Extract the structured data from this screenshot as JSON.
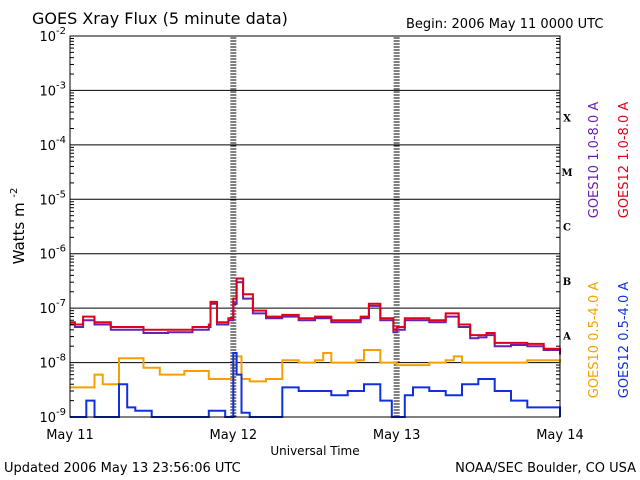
{
  "chart_data": {
    "type": "line",
    "title": "GOES Xray Flux (5 minute data)",
    "begin_label": "Begin:  2006 May 11 0000 UTC",
    "xlabel": "Universal Time",
    "ylabel": "Watts m",
    "ylabel_exponent": "-2",
    "y_scale": "log",
    "ylim": [
      1e-09,
      0.01
    ],
    "y_ticks": [
      {
        "base": "10",
        "exp": "-9",
        "value": 1e-09
      },
      {
        "base": "10",
        "exp": "-8",
        "value": 1e-08
      },
      {
        "base": "10",
        "exp": "-7",
        "value": 1e-07
      },
      {
        "base": "10",
        "exp": "-6",
        "value": 1e-06
      },
      {
        "base": "10",
        "exp": "-5",
        "value": 1e-05
      },
      {
        "base": "10",
        "exp": "-4",
        "value": 0.0001
      },
      {
        "base": "10",
        "exp": "-3",
        "value": 0.001
      },
      {
        "base": "10",
        "exp": "-2",
        "value": 0.01
      }
    ],
    "xlim": [
      0,
      3
    ],
    "x_ticks": [
      {
        "label": "May 11",
        "day": 0
      },
      {
        "label": "May 12",
        "day": 1
      },
      {
        "label": "May 13",
        "day": 2
      },
      {
        "label": "May 14",
        "day": 3
      }
    ],
    "flare_classes": [
      {
        "label": "X",
        "value": 0.000316
      },
      {
        "label": "M",
        "value": 3.16e-05
      },
      {
        "label": "C",
        "value": 3.16e-06
      },
      {
        "label": "B",
        "value": 3.16e-07
      },
      {
        "label": "A",
        "value": 3.16e-08
      }
    ],
    "grid": true,
    "series": [
      {
        "name": "GOES10 1.0-8.0 A",
        "color": "#6a1fb0",
        "x": [
          0,
          0.03,
          0.08,
          0.15,
          0.25,
          0.35,
          0.45,
          0.6,
          0.75,
          0.85,
          0.86,
          0.9,
          0.97,
          1.0,
          1.02,
          1.06,
          1.12,
          1.2,
          1.3,
          1.4,
          1.5,
          1.6,
          1.7,
          1.78,
          1.83,
          1.9,
          1.98,
          2.0,
          2.05,
          2.2,
          2.3,
          2.38,
          2.45,
          2.5,
          2.55,
          2.6,
          2.7,
          2.8,
          2.9,
          3.0
        ],
        "y": [
          5e-08,
          4.5e-08,
          6e-08,
          5e-08,
          4e-08,
          4e-08,
          3.5e-08,
          3.6e-08,
          4e-08,
          4.5e-08,
          1.2e-07,
          5e-08,
          6e-08,
          1.2e-07,
          3e-07,
          1.5e-07,
          8e-08,
          6.5e-08,
          7e-08,
          6e-08,
          6.5e-08,
          5.5e-08,
          5.5e-08,
          6.5e-08,
          1.1e-07,
          6e-08,
          3.6e-08,
          4e-08,
          6e-08,
          5.5e-08,
          7e-08,
          4.5e-08,
          2.8e-08,
          2.9e-08,
          3.2e-08,
          2e-08,
          2.1e-08,
          2e-08,
          1.7e-08,
          1.4e-08
        ]
      },
      {
        "name": "GOES12 1.0-8.0 A",
        "color": "#e0001a",
        "x": [
          0,
          0.03,
          0.08,
          0.15,
          0.25,
          0.35,
          0.45,
          0.6,
          0.75,
          0.85,
          0.86,
          0.9,
          0.97,
          1.0,
          1.02,
          1.06,
          1.12,
          1.2,
          1.3,
          1.4,
          1.5,
          1.6,
          1.7,
          1.78,
          1.83,
          1.9,
          1.98,
          2.0,
          2.05,
          2.2,
          2.3,
          2.38,
          2.45,
          2.5,
          2.55,
          2.6,
          2.7,
          2.8,
          2.9,
          3.0
        ],
        "y": [
          5.5e-08,
          5e-08,
          7e-08,
          5.5e-08,
          4.5e-08,
          4.5e-08,
          4e-08,
          4e-08,
          4.5e-08,
          5e-08,
          1.3e-07,
          5.5e-08,
          6.5e-08,
          1.5e-07,
          3.5e-07,
          1.8e-07,
          9e-08,
          7e-08,
          7.5e-08,
          6.5e-08,
          7e-08,
          6e-08,
          6e-08,
          7e-08,
          1.2e-07,
          6.5e-08,
          4e-08,
          4.5e-08,
          6.5e-08,
          6e-08,
          8e-08,
          5e-08,
          3.2e-08,
          3.2e-08,
          3.5e-08,
          2.3e-08,
          2.3e-08,
          2.2e-08,
          1.8e-08,
          1.5e-08
        ]
      },
      {
        "name": "GOES10 0.5-4.0 A",
        "color": "#f5a000",
        "x": [
          0,
          0.1,
          0.15,
          0.2,
          0.3,
          0.45,
          0.55,
          0.7,
          0.85,
          0.95,
          1.0,
          1.02,
          1.05,
          1.1,
          1.2,
          1.3,
          1.4,
          1.5,
          1.55,
          1.6,
          1.75,
          1.8,
          1.9,
          2.0,
          2.1,
          2.2,
          2.3,
          2.35,
          2.4,
          2.5,
          2.6,
          2.7,
          2.8,
          2.9,
          3.0
        ],
        "y": [
          3.5e-09,
          3.5e-09,
          6e-09,
          4e-09,
          1.2e-08,
          8e-09,
          6e-09,
          7e-09,
          5e-09,
          5e-09,
          1e-08,
          1.3e-08,
          5e-09,
          4.5e-09,
          5e-09,
          1.1e-08,
          1e-08,
          1.1e-08,
          1.5e-08,
          1e-08,
          1.1e-08,
          1.7e-08,
          1e-08,
          9e-09,
          9e-09,
          1e-08,
          1.1e-08,
          1.3e-08,
          1e-08,
          1e-08,
          1e-08,
          1e-08,
          1.1e-08,
          1.1e-08,
          1e-08
        ]
      },
      {
        "name": "GOES12 0.5-4.0 A",
        "color": "#1030e0",
        "x": [
          0,
          0.05,
          0.1,
          0.15,
          0.2,
          0.3,
          0.35,
          0.4,
          0.5,
          0.6,
          0.7,
          0.8,
          0.85,
          0.9,
          0.95,
          1.0,
          1.02,
          1.05,
          1.1,
          1.2,
          1.3,
          1.4,
          1.5,
          1.6,
          1.7,
          1.8,
          1.9,
          1.97,
          2.0,
          2.05,
          2.1,
          2.2,
          2.3,
          2.4,
          2.5,
          2.6,
          2.7,
          2.8,
          2.9,
          3.0
        ],
        "y": [
          1e-09,
          1e-09,
          2e-09,
          1e-09,
          1e-09,
          4e-09,
          1.5e-09,
          1.3e-09,
          1e-09,
          1e-09,
          1e-09,
          1e-09,
          1.3e-09,
          1.3e-09,
          1e-09,
          1.5e-08,
          6e-09,
          1.2e-09,
          1e-09,
          1e-09,
          3.5e-09,
          3e-09,
          3e-09,
          2.5e-09,
          3e-09,
          4e-09,
          2e-09,
          1e-09,
          1e-09,
          2.5e-09,
          3.5e-09,
          3e-09,
          2.5e-09,
          4e-09,
          5e-09,
          3e-09,
          2e-09,
          1.5e-09,
          1.5e-09,
          1e-09
        ]
      }
    ]
  },
  "footer": {
    "updated": "Updated 2006 May 13 23:56:06 UTC",
    "credit": "NOAA/SEC Boulder, CO USA"
  }
}
